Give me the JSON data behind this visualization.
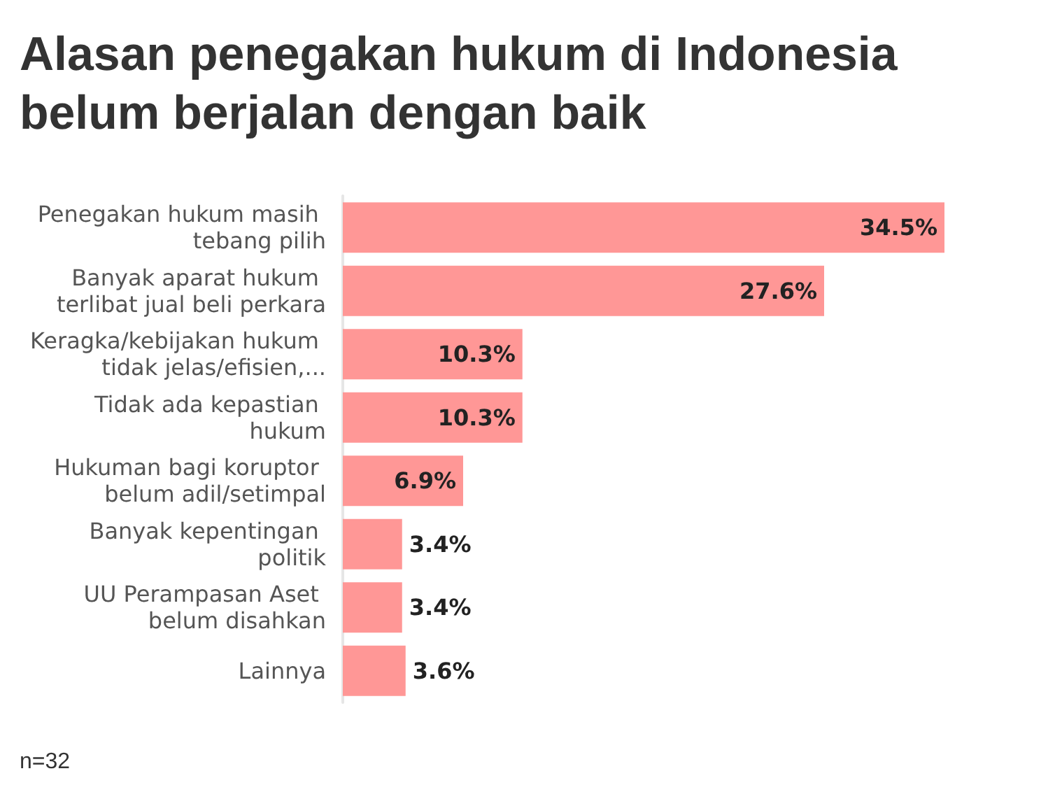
{
  "chart_data": {
    "type": "bar",
    "orientation": "horizontal",
    "title": "Alasan penegakan hukum di Indonesia belum berjalan dengan baik",
    "categories": [
      "Penegakan hukum masih tebang pilih",
      "Banyak aparat hukum terlibat jual beli perkara",
      "Keragka/kebijakan hukum tidak jelas/efisien,...",
      "Tidak ada kepastian hukum",
      "Hukuman bagi koruptor belum adil/setimpal",
      "Banyak kepentingan politik",
      "UU Perampasan Aset belum disahkan",
      "Lainnya"
    ],
    "series": [
      {
        "color": "#ff9796",
        "values": [
          34.5,
          27.6,
          10.3,
          10.3,
          6.9,
          3.4,
          3.4,
          3.6
        ],
        "value_labels": [
          "34.5%",
          "27.6%",
          "10.3%",
          "10.3%",
          "6.9%",
          "3.4%",
          "3.4%",
          "3.6%"
        ]
      }
    ],
    "annotations": [
      "n=32"
    ]
  }
}
